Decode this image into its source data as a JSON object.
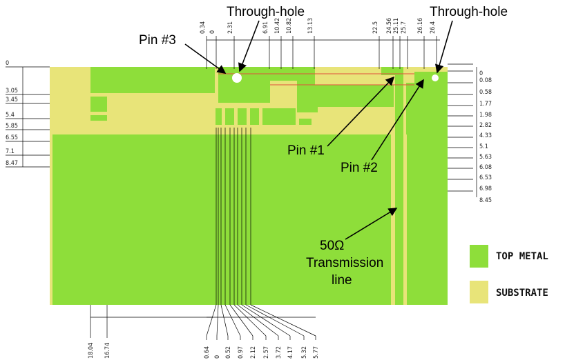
{
  "colors": {
    "metal": "#8ede3a",
    "substrate": "#e8e479",
    "line": "#000000",
    "red": "#e0503a"
  },
  "labels": {
    "through_hole_left": "Through-hole",
    "through_hole_right": "Through-hole",
    "pin3": "Pin #3",
    "pin1": "Pin #1",
    "pin2": "Pin #2",
    "tline_1": "50Ω",
    "tline_2": "Transmission",
    "tline_3": "line"
  },
  "legend": {
    "metal": "TOP METAL",
    "substrate": "SUBSTRATE"
  },
  "dimensions": {
    "top": [
      "0.34",
      "0",
      "2.31",
      "6.91",
      "10.42",
      "10.82",
      "13.13",
      "22.5",
      "24.56",
      "25.11",
      "25.7",
      "26.16",
      "26.4"
    ],
    "left": [
      "0",
      "3.05",
      "3.45",
      "5.4",
      "5.85",
      "6.55",
      "7.1",
      "8.47"
    ],
    "right": [
      "0",
      "0.08",
      "0.58",
      "1.77",
      "1.98",
      "2.82",
      "4.33",
      "5.1",
      "5.63",
      "6.08",
      "6.53",
      "6.98",
      "8.45"
    ],
    "bottom_left": [
      "18.04",
      "16.74"
    ],
    "bottom_right": [
      "0.64",
      "0",
      "0.52",
      "0.97",
      "2.12",
      "2.57",
      "3.72",
      "4.17",
      "5.32",
      "5.77"
    ]
  }
}
